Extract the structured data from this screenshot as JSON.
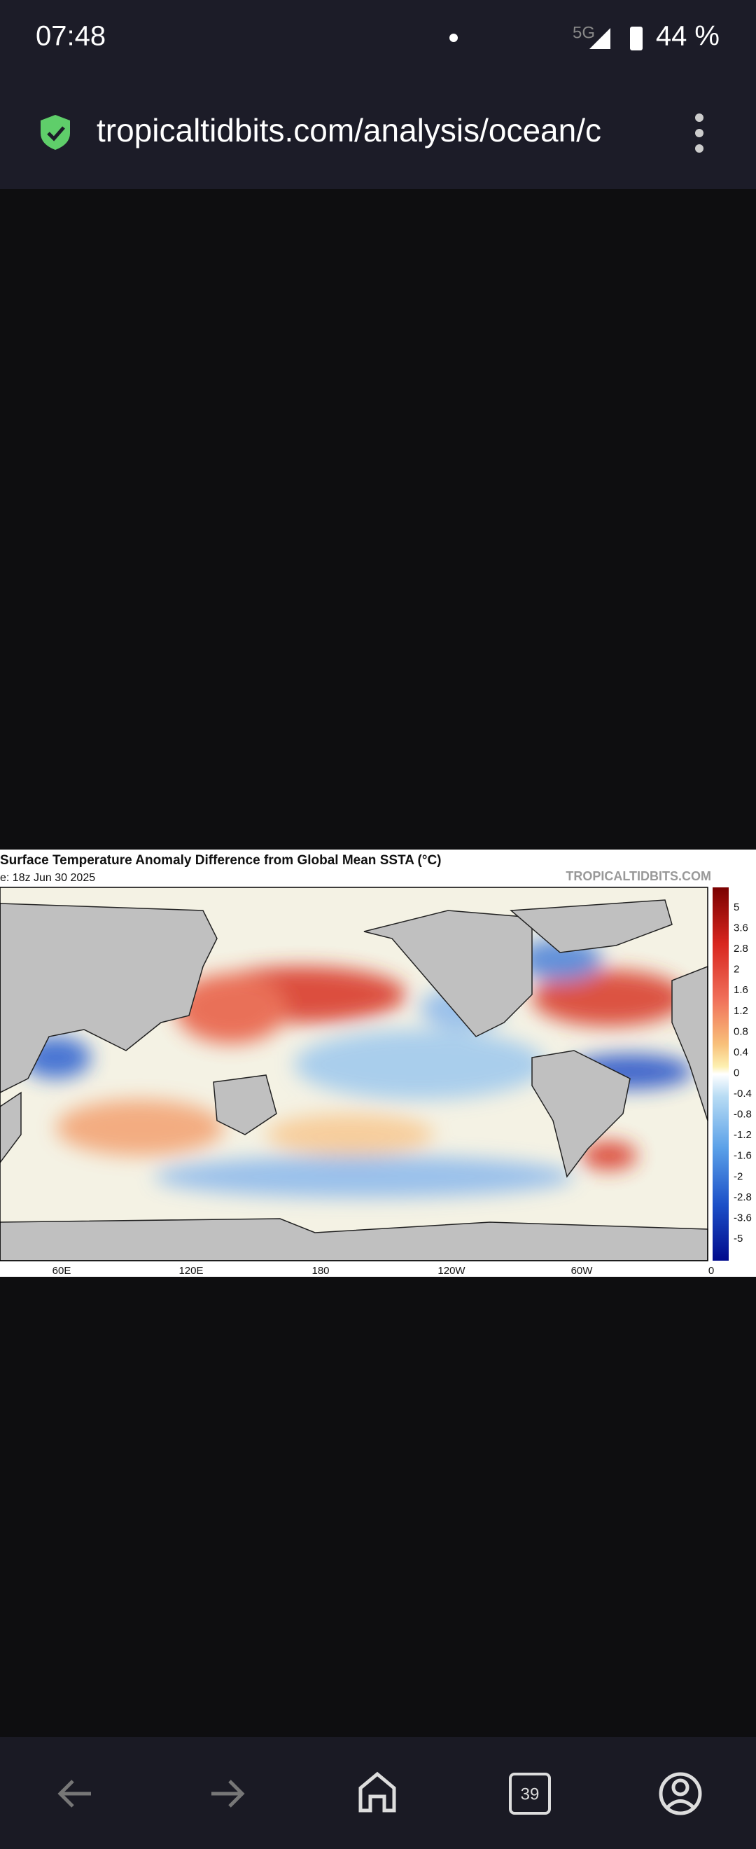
{
  "status_bar": {
    "time": "07:48",
    "battery": "44 %",
    "network": "5G"
  },
  "url_bar": {
    "url": "tropicaltidbits.com/analysis/ocean/c"
  },
  "map": {
    "title": "Surface Temperature Anomaly Difference from Global Mean SSTA (°C)",
    "subtitle": "e: 18z Jun 30 2025",
    "watermark": "TROPICALTIDBITS.COM",
    "colorbar_labels": [
      "5",
      "3.6",
      "2.8",
      "2",
      "1.6",
      "1.2",
      "0.8",
      "0.4",
      "0",
      "-0.4",
      "-0.8",
      "-1.2",
      "-1.6",
      "-2",
      "-2.8",
      "-3.6",
      "-5"
    ],
    "x_labels": [
      "60E",
      "120E",
      "180",
      "120W",
      "60W",
      "0"
    ]
  },
  "nav": {
    "tab_count": "39"
  }
}
